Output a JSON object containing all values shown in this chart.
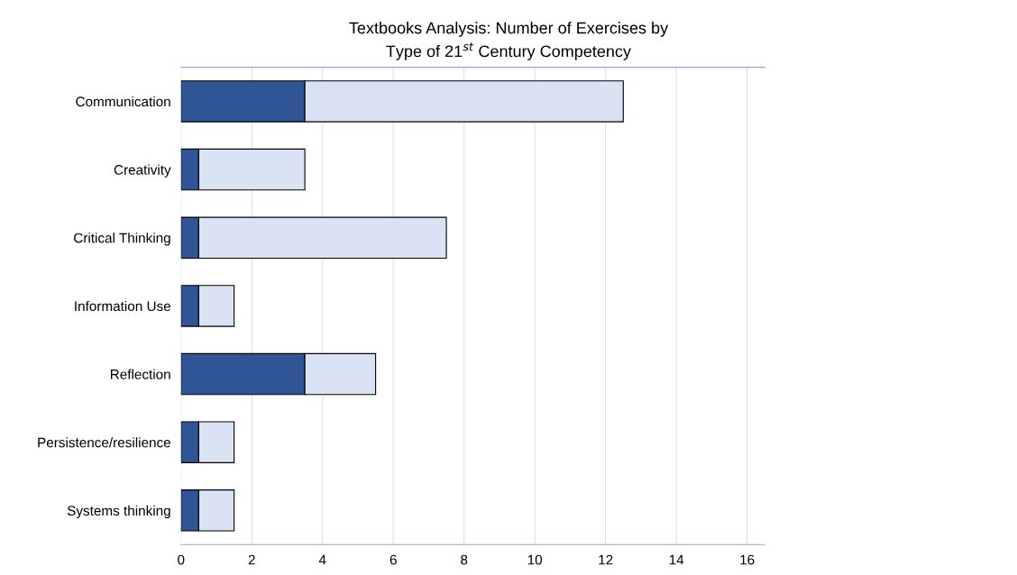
{
  "chart_data": {
    "type": "bar",
    "orientation": "horizontal",
    "stacked": true,
    "title": "Textbooks Analysis: Number of Exercises by\nType of 21$^{st}$ Century Competency",
    "categories": [
      "Communication",
      "Creativity",
      "Critical Thinking",
      "Information Use",
      "Reflection",
      "Persistence/resilience",
      "Systems thinking"
    ],
    "series": [
      {
        "color": "#2f5597",
        "values": [
          3.5,
          0.5,
          0.5,
          0.5,
          3.5,
          0.5,
          0.5
        ]
      },
      {
        "color": "#dae3f3",
        "values": [
          9,
          3,
          7,
          1,
          2,
          1,
          1
        ]
      }
    ],
    "xlim": [
      0,
      16.5
    ],
    "xticks": [
      0,
      2,
      4,
      6,
      8,
      10,
      12,
      14,
      16
    ],
    "grid": "x",
    "legend": false
  }
}
